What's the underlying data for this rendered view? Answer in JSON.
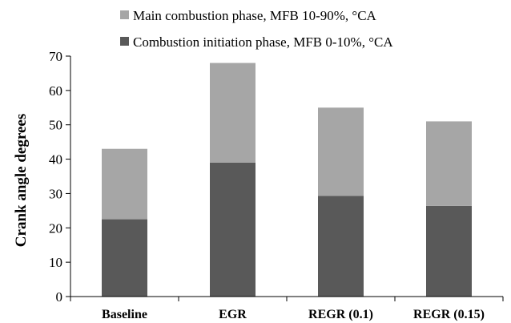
{
  "chart_data": {
    "type": "bar",
    "stacked": true,
    "title": "",
    "xlabel": "",
    "ylabel": "Crank angle degrees",
    "ylim": [
      0,
      70
    ],
    "yticks": [
      0,
      10,
      20,
      30,
      40,
      50,
      60,
      70
    ],
    "grid": false,
    "legend_position": "top",
    "categories": [
      "Baseline",
      "EGR",
      "REGR (0.1)",
      "REGR (0.15)"
    ],
    "series": [
      {
        "name": "Combustion initiation phase, MFB 0-10%, °CA",
        "color": "#595959",
        "values": [
          22.5,
          39,
          29.3,
          26.4
        ]
      },
      {
        "name": "Main combustion phase, MFB 10-90%, °CA",
        "color": "#a6a6a6",
        "values": [
          20.5,
          29,
          25.7,
          24.6
        ]
      }
    ]
  }
}
